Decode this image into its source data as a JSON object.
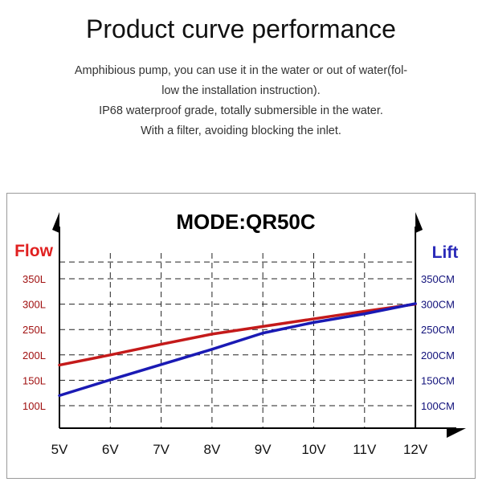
{
  "header": {
    "title": "Product curve performance",
    "description_lines": [
      "Amphibious pump, you can use it in the water or out of water(fol-",
      "low the installation instruction).",
      "IP68 waterproof grade, totally submersible in the water.",
      "With a filter, avoiding blocking the inlet."
    ]
  },
  "chart_data": {
    "type": "line",
    "title": "MODE:QR50C",
    "x": [
      "5V",
      "6V",
      "7V",
      "8V",
      "9V",
      "10V",
      "11V",
      "12V"
    ],
    "left_axis": {
      "label": "Flow",
      "color": "#e02020",
      "ticks": [
        "100L",
        "150L",
        "200L",
        "250L",
        "300L",
        "350L"
      ],
      "tick_values": [
        100,
        150,
        200,
        250,
        300,
        350
      ]
    },
    "right_axis": {
      "label": "Lift",
      "color": "#2a2ab8",
      "ticks": [
        "100CM",
        "150CM",
        "200CM",
        "250CM",
        "300CM",
        "350CM"
      ],
      "tick_values": [
        100,
        150,
        200,
        250,
        300,
        350
      ]
    },
    "ylim": [
      100,
      350
    ],
    "grid": true,
    "series": [
      {
        "name": "Flow",
        "axis": "left",
        "color": "#c41a1a",
        "values": [
          180,
          200,
          221,
          241,
          256,
          271,
          286,
          300
        ]
      },
      {
        "name": "Lift",
        "axis": "right",
        "color": "#1a1ab4",
        "values": [
          120,
          151,
          181,
          211,
          243,
          264,
          281,
          301
        ]
      }
    ]
  }
}
